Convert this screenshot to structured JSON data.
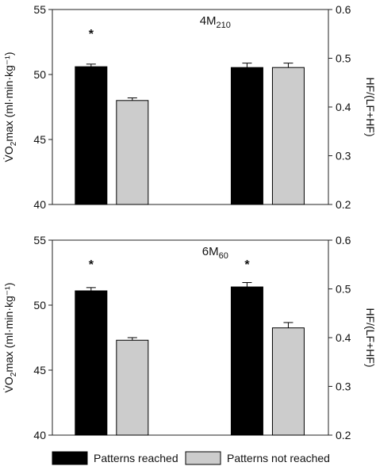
{
  "colors": {
    "reached": "#000000",
    "not_reached": "#cccccc",
    "axis": "#222222"
  },
  "legend": {
    "items": [
      {
        "label": "Patterns reached",
        "color": "#000000"
      },
      {
        "label": "Patterns not reached",
        "color": "#cccccc"
      }
    ],
    "placement": "bottom"
  },
  "chart_data": [
    {
      "type": "bar",
      "title": "4M",
      "title_sub": "210",
      "ylabel": "V̇O",
      "ylabel_sub": "2",
      "ylabel_rest": "max (ml·min·kg⁻¹)",
      "y2label": "HF/(LF+HF)",
      "ylim": [
        40,
        55
      ],
      "y2lim": [
        0.2,
        0.6
      ],
      "yticks": [
        "40",
        "45",
        "50",
        "55"
      ],
      "y2ticks": [
        "0.2",
        "0.3",
        "0.4",
        "0.5",
        "0.6"
      ],
      "groups": [
        {
          "axis": "left",
          "bars": [
            {
              "series": "reached",
              "value": 50.6,
              "error": 0.2,
              "marker": "*"
            },
            {
              "series": "not_reached",
              "value": 48.0,
              "error": 0.2,
              "marker": ""
            }
          ]
        },
        {
          "axis": "right",
          "bars": [
            {
              "series": "reached",
              "value": 0.481,
              "error": 0.009,
              "marker": ""
            },
            {
              "series": "not_reached",
              "value": 0.481,
              "error": 0.009,
              "marker": ""
            }
          ]
        }
      ]
    },
    {
      "type": "bar",
      "title": "6M",
      "title_sub": "60",
      "ylabel": "V̇O",
      "ylabel_sub": "2",
      "ylabel_rest": "max (ml·min·kg⁻¹)",
      "y2label": "HF/(LF+HF)",
      "ylim": [
        40,
        55
      ],
      "y2lim": [
        0.2,
        0.6
      ],
      "yticks": [
        "40",
        "45",
        "50",
        "55"
      ],
      "y2ticks": [
        "0.2",
        "0.3",
        "0.4",
        "0.5",
        "0.6"
      ],
      "groups": [
        {
          "axis": "left",
          "bars": [
            {
              "series": "reached",
              "value": 51.1,
              "error": 0.25,
              "marker": "*"
            },
            {
              "series": "not_reached",
              "value": 47.3,
              "error": 0.2,
              "marker": ""
            }
          ]
        },
        {
          "axis": "right",
          "bars": [
            {
              "series": "reached",
              "value": 0.504,
              "error": 0.009,
              "marker": "*"
            },
            {
              "series": "not_reached",
              "value": 0.42,
              "error": 0.011,
              "marker": ""
            }
          ]
        }
      ]
    }
  ]
}
